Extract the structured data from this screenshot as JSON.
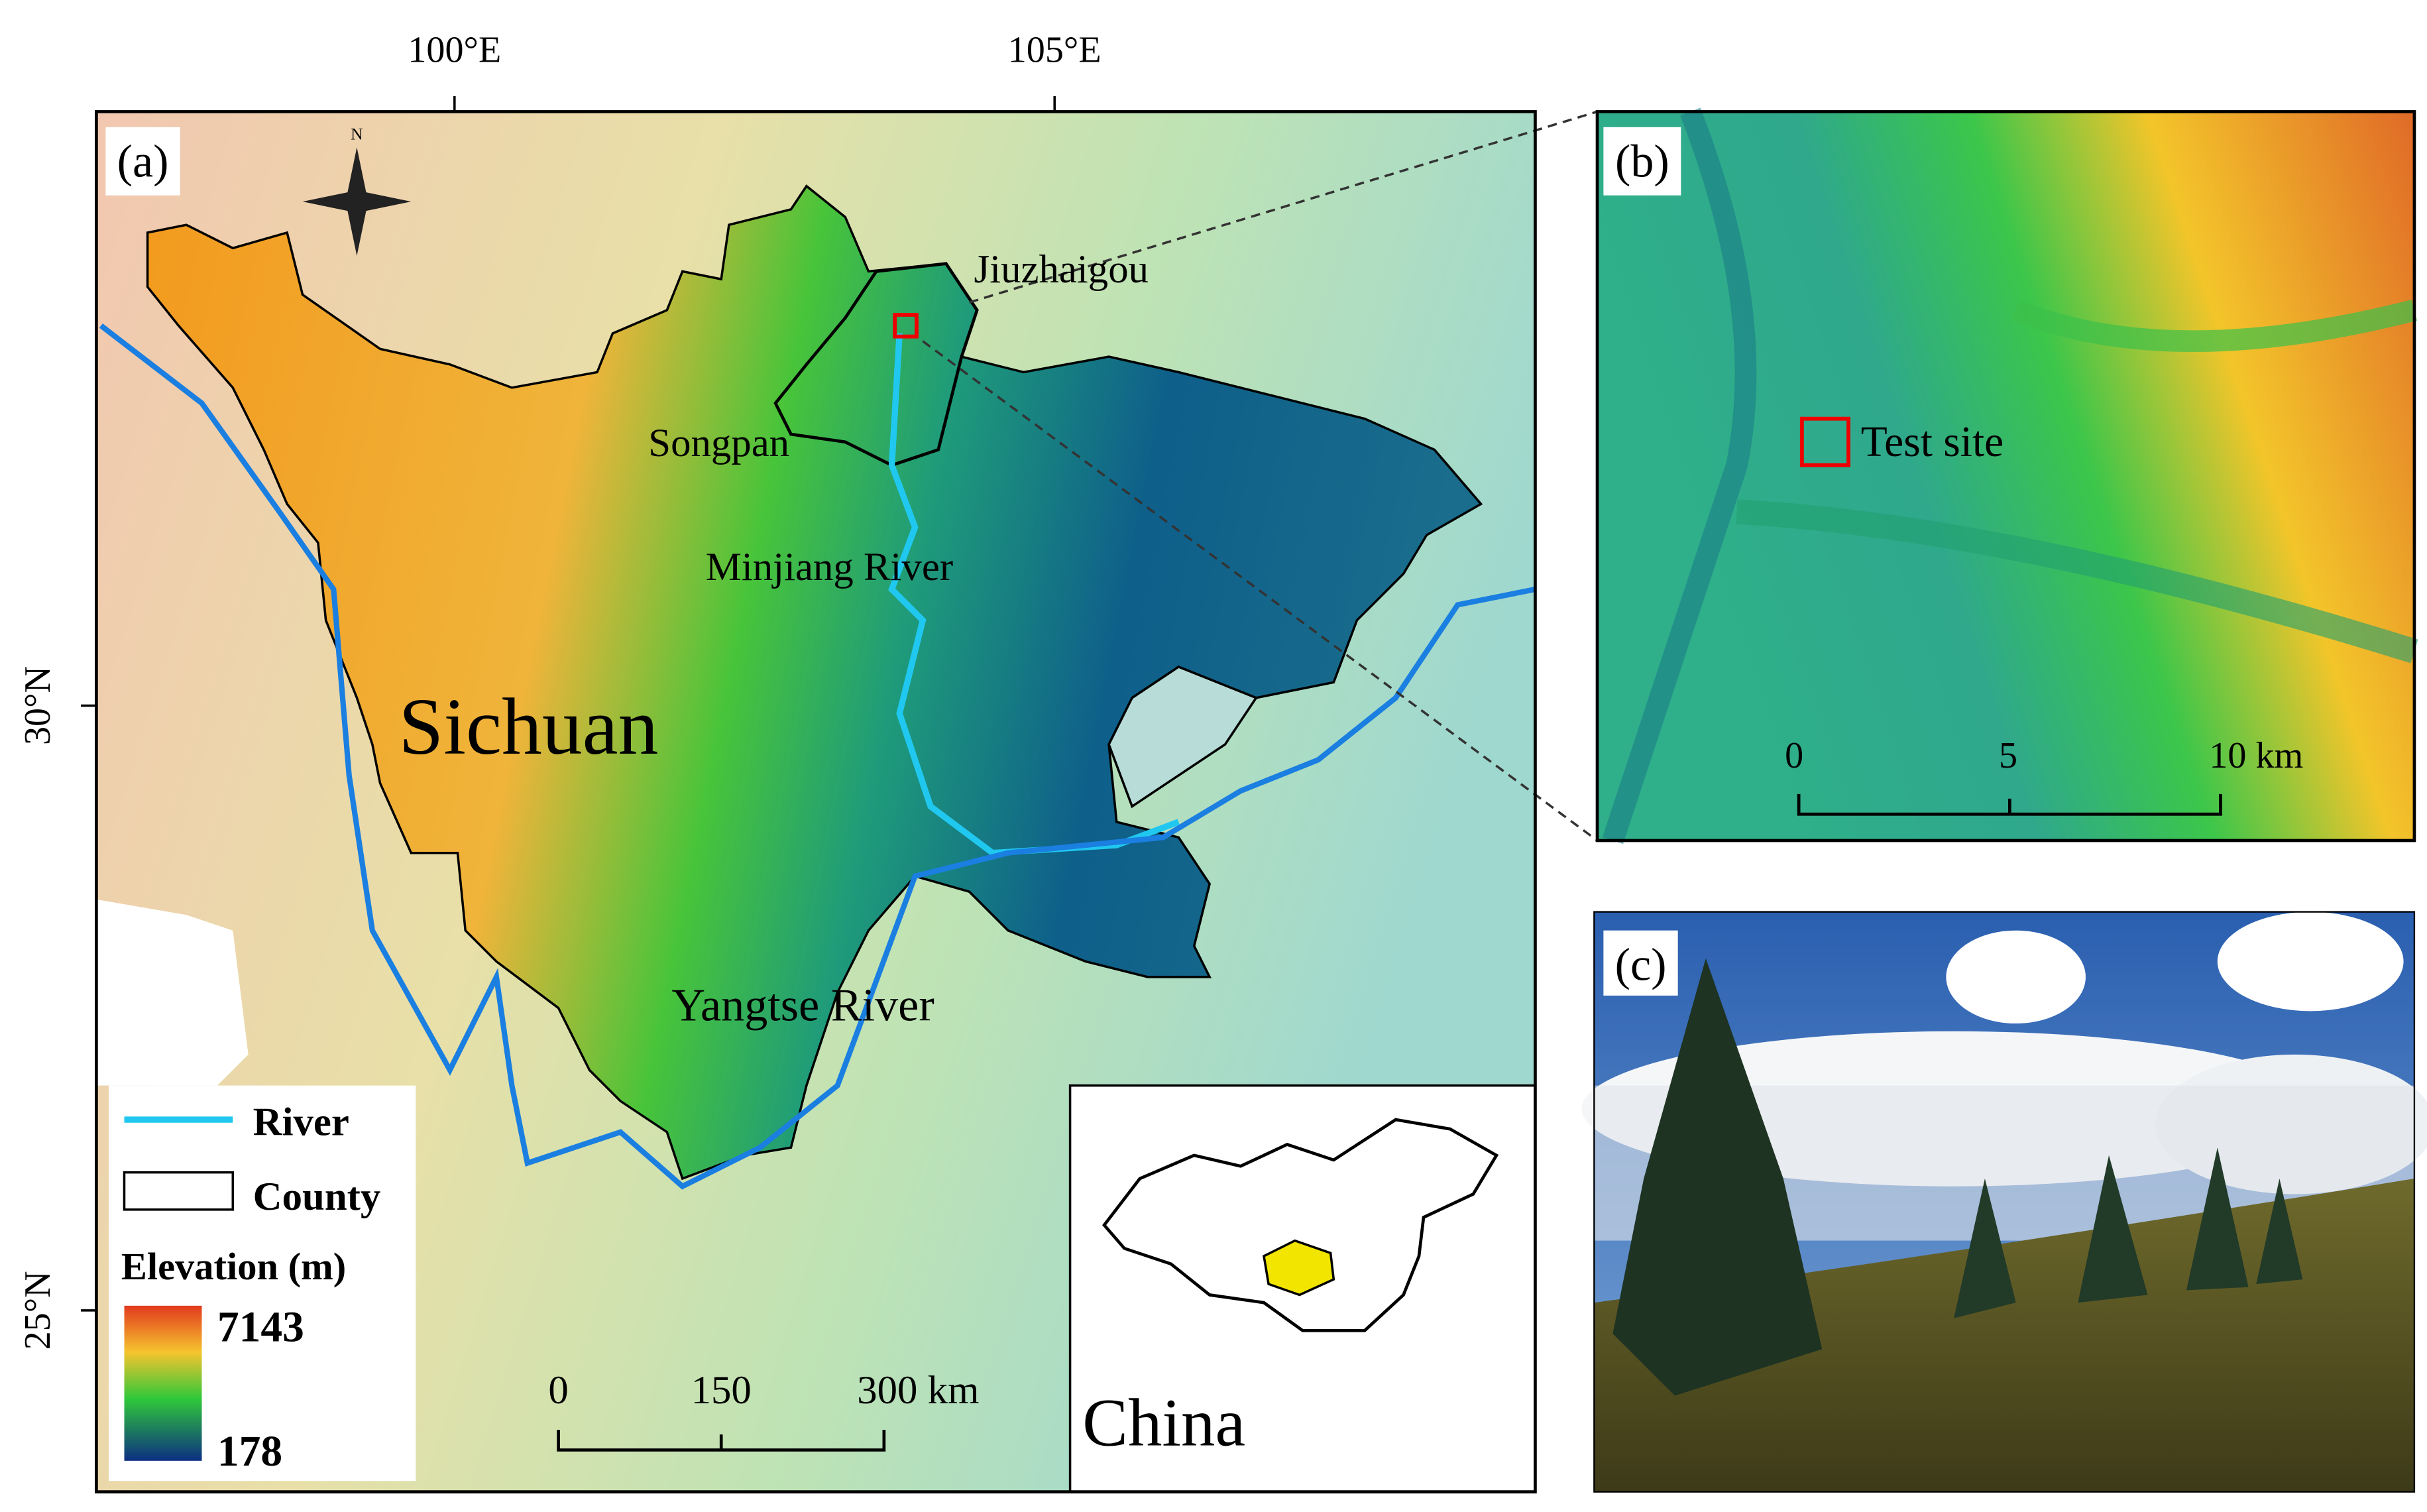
{
  "axes": {
    "lon_labels": [
      "100°E",
      "105°E"
    ],
    "lat_labels": [
      "30°N",
      "25°N"
    ]
  },
  "panel_a": {
    "label": "(a)",
    "compass": "N",
    "places": {
      "jiuzhaigou": "Jiuzhaigou",
      "songpan": "Songpan",
      "minjiang": "Minjiang River",
      "sichuan": "Sichuan",
      "yangtse": "Yangtse River"
    },
    "legend": {
      "river": "River",
      "county": "County",
      "elevation_title": "Elevation (m)",
      "elevation_max": "7143",
      "elevation_min": "178"
    },
    "scale_bar": [
      "0",
      "150",
      "300 km"
    ],
    "inset_label": "China"
  },
  "panel_b": {
    "label": "(b)",
    "site": "Test site",
    "scale_bar": [
      "0",
      "5",
      "10 km"
    ]
  },
  "panel_c": {
    "label": "(c)"
  }
}
